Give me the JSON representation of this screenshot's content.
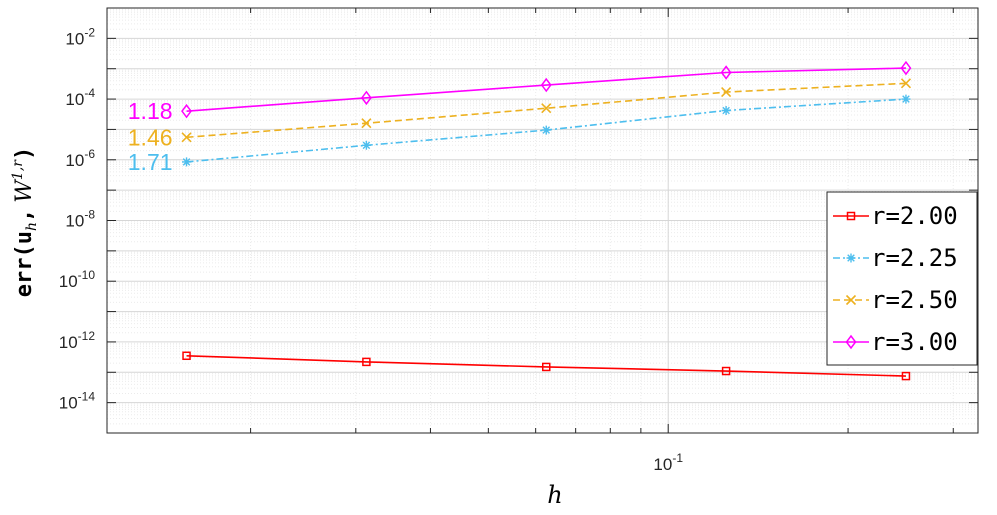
{
  "chart_data": {
    "type": "line",
    "x_scale": "log",
    "y_scale": "log",
    "xlabel": "h",
    "ylabel": {
      "prefix": "err(",
      "arg1": "u",
      "arg1_sub": "h",
      "sep": ",",
      "arg2": "W",
      "arg2_sup": "1,r",
      "suffix": ")"
    },
    "xlim": [
      0.0115,
      0.33
    ],
    "ylim": [
      1e-15,
      0.1
    ],
    "x_ticks": [
      {
        "value": 0.1,
        "base": "10",
        "exp": "-1"
      }
    ],
    "y_ticks": [
      {
        "value": 1e-14,
        "base": "10",
        "exp": "-14"
      },
      {
        "value": 1e-12,
        "base": "10",
        "exp": "-12"
      },
      {
        "value": 1e-10,
        "base": "10",
        "exp": "-10"
      },
      {
        "value": 1e-08,
        "base": "10",
        "exp": "-8"
      },
      {
        "value": 1e-06,
        "base": "10",
        "exp": "-6"
      },
      {
        "value": 0.0001,
        "base": "10",
        "exp": "-4"
      },
      {
        "value": 0.01,
        "base": "10",
        "exp": "-2"
      }
    ],
    "grid": true,
    "legend_position": "right",
    "x": [
      0.015625,
      0.03125,
      0.0625,
      0.125,
      0.25
    ],
    "series": [
      {
        "name": "r=2.00",
        "color": "#ff0000",
        "marker": "square",
        "dash": "solid",
        "values": [
          3.5e-13,
          2.2e-13,
          1.5e-13,
          1.1e-13,
          7.5e-14
        ]
      },
      {
        "name": "r=2.25",
        "color": "#4dbeee",
        "marker": "asterisk",
        "dash": "dashdot",
        "values": [
          8.5e-07,
          3e-06,
          9.5e-06,
          4.2e-05,
          0.0001
        ]
      },
      {
        "name": "r=2.50",
        "color": "#edb120",
        "marker": "x",
        "dash": "dashed",
        "values": [
          5.5e-06,
          1.6e-05,
          5e-05,
          0.00017,
          0.00033
        ]
      },
      {
        "name": "r=3.00",
        "color": "#ff00ff",
        "marker": "diamond",
        "dash": "solid",
        "values": [
          4e-05,
          0.00011,
          0.00029,
          0.00075,
          0.00105
        ]
      }
    ],
    "annotations": [
      {
        "text": "1.18",
        "color": "#ff00ff",
        "series": 3
      },
      {
        "text": "1.46",
        "color": "#edb120",
        "series": 2
      },
      {
        "text": "1.71",
        "color": "#4dbeee",
        "series": 1
      }
    ]
  }
}
